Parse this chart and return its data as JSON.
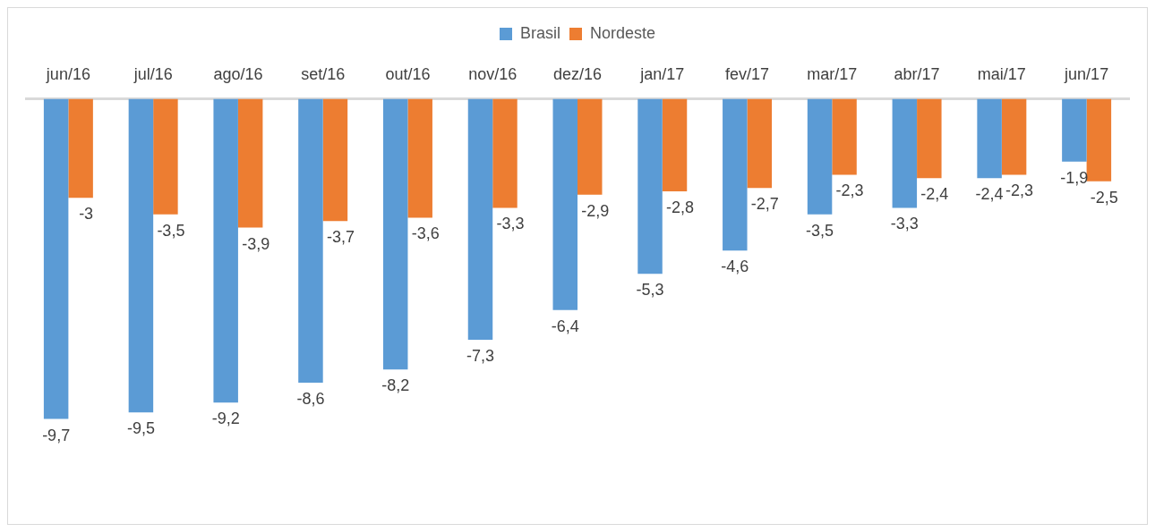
{
  "chart_data": {
    "type": "bar",
    "categories": [
      "jun/16",
      "jul/16",
      "ago/16",
      "set/16",
      "out/16",
      "nov/16",
      "dez/16",
      "jan/17",
      "fev/17",
      "mar/17",
      "abr/17",
      "mai/17",
      "jun/17"
    ],
    "series": [
      {
        "name": "Brasil",
        "color": "#5b9bd5",
        "values": [
          -9.7,
          -9.5,
          -9.2,
          -8.6,
          -8.2,
          -7.3,
          -6.4,
          -5.3,
          -4.6,
          -3.5,
          -3.3,
          -2.4,
          -1.9
        ],
        "value_labels": [
          "-9,7",
          "-9,5",
          "-9,2",
          "-8,6",
          "-8,2",
          "-7,3",
          "-6,4",
          "-5,3",
          "-4,6",
          "-3,5",
          "-3,3",
          "-2,4",
          "-1,9"
        ]
      },
      {
        "name": "Nordeste",
        "color": "#ed7d31",
        "values": [
          -3,
          -3.5,
          -3.9,
          -3.7,
          -3.6,
          -3.3,
          -2.9,
          -2.8,
          -2.7,
          -2.3,
          -2.4,
          -2.3,
          -2.5
        ],
        "value_labels": [
          "-3",
          "-3,5",
          "-3,9",
          "-3,7",
          "-3,6",
          "-3,3",
          "-2,9",
          "-2,8",
          "-2,7",
          "-2,3",
          "-2,4",
          "-2,3",
          "-2,5"
        ]
      }
    ],
    "legend": "top",
    "grid": false
  }
}
